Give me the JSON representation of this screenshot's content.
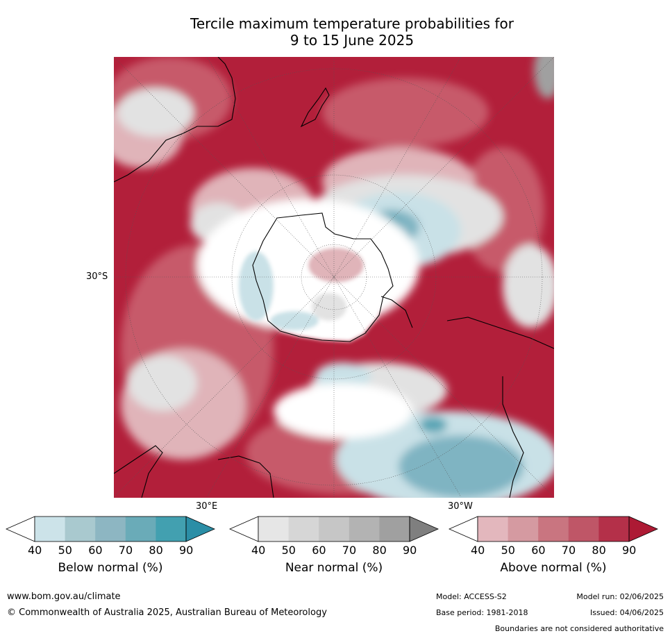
{
  "title_line1": "Tercile maximum temperature probabilities for",
  "title_line2": "9 to 15 June 2025",
  "map": {
    "lat_label": "30°S",
    "lon_label_left": "30°E",
    "lon_label_right": "30°W",
    "colors": {
      "above_dark": "#b21f3a",
      "above_mid": "#c75a6a",
      "above_light": "#e0b4b9",
      "near": "#e2e2e2",
      "below_light": "#c9e1e7",
      "below_mid": "#7fb4c2",
      "below_dark": "#5aa5b5",
      "white": "#ffffff",
      "grey_area": "#a0a0a0"
    }
  },
  "colorbars": [
    {
      "title": "Below normal (%)",
      "ticks": [
        "40",
        "50",
        "60",
        "70",
        "80",
        "90"
      ],
      "colors": [
        "#ffffff",
        "#cce3e9",
        "#a9c9cf",
        "#8db6c2",
        "#6aabb8",
        "#42a0b0",
        "#2b8ea6"
      ]
    },
    {
      "title": "Near normal (%)",
      "ticks": [
        "40",
        "50",
        "60",
        "70",
        "80",
        "90"
      ],
      "colors": [
        "#ffffff",
        "#e6e6e6",
        "#d6d6d6",
        "#c6c6c6",
        "#b3b3b3",
        "#a0a0a0",
        "#7f7f7f"
      ]
    },
    {
      "title": "Above normal (%)",
      "ticks": [
        "40",
        "50",
        "60",
        "70",
        "80",
        "90"
      ],
      "colors": [
        "#ffffff",
        "#e3b7bd",
        "#d59aa1",
        "#c97580",
        "#bf5667",
        "#b43049",
        "#ad1a34"
      ]
    }
  ],
  "footer": {
    "website": "www.bom.gov.au/climate",
    "copyright": "© Commonwealth of Australia 2025, Australian Bureau of Meteorology",
    "model": "Model: ACCESS-S2",
    "model_run": "Model run: 02/06/2025",
    "base_period": "Base period: 1981-2018",
    "issued": "Issued: 04/06/2025",
    "disclaimer": "Boundaries are not considered authoritative"
  }
}
